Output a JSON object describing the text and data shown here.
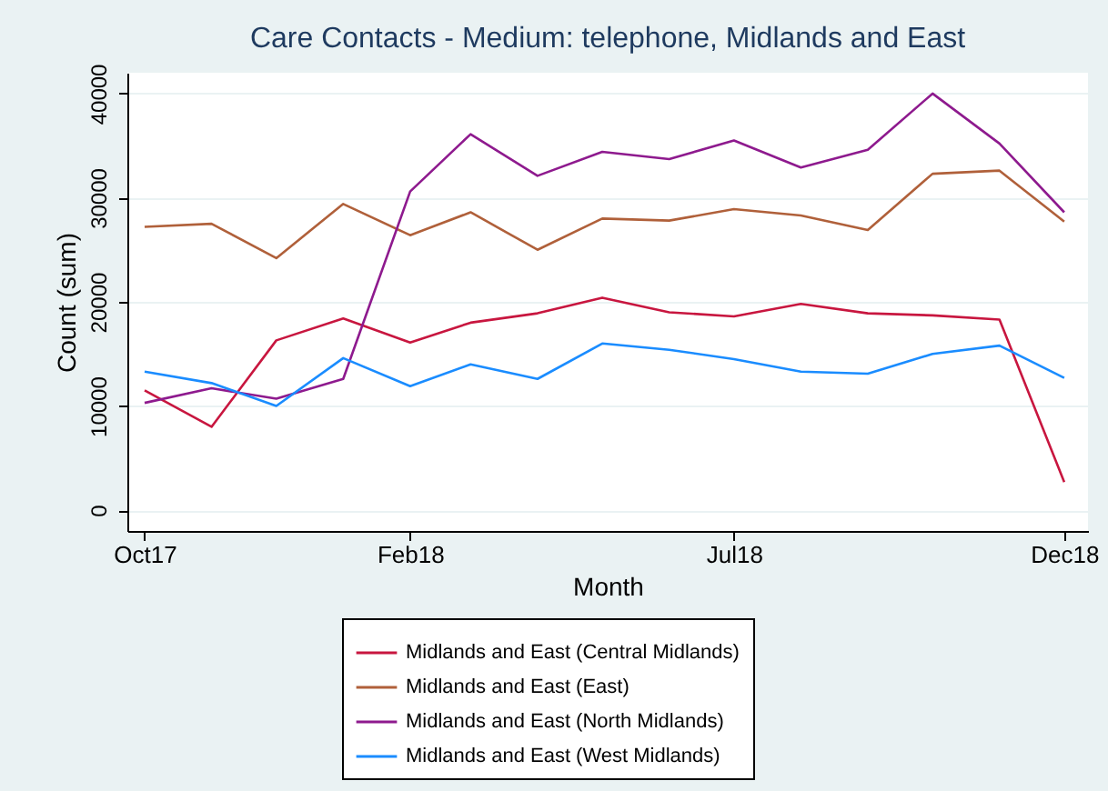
{
  "chart_data": {
    "type": "line",
    "title": "Care Contacts - Medium: telephone, Midlands and East",
    "xlabel": "Month",
    "ylabel": "Count (sum)",
    "x": [
      "2017-10",
      "2017-11",
      "2017-12",
      "2018-01",
      "2018-02",
      "2018-03",
      "2018-04",
      "2018-05",
      "2018-06",
      "2018-07",
      "2018-08",
      "2018-09",
      "2018-10",
      "2018-11",
      "2018-12"
    ],
    "series": [
      {
        "name": "Midlands and East (Central Midlands)",
        "color": "#c8163f",
        "values": [
          11500,
          8000,
          16300,
          18400,
          16100,
          18000,
          18900,
          20400,
          19000,
          18600,
          19800,
          18900,
          18700,
          18300,
          2700
        ]
      },
      {
        "name": "Midlands and East (East)",
        "color": "#b0603a",
        "values": [
          27200,
          27500,
          24200,
          29400,
          26400,
          28600,
          25000,
          28000,
          27800,
          28900,
          28300,
          26900,
          32300,
          32600,
          27700
        ]
      },
      {
        "name": "Midlands and East (North Midlands)",
        "color": "#8e1a8e",
        "values": [
          10300,
          11700,
          10700,
          12600,
          30600,
          36100,
          32100,
          34400,
          33700,
          35500,
          32900,
          34600,
          40000,
          35200,
          28600
        ]
      },
      {
        "name": "Midlands and East (West Midlands)",
        "color": "#1a8cff",
        "values": [
          13300,
          12200,
          10000,
          14600,
          11900,
          14000,
          12600,
          16000,
          15400,
          14500,
          13300,
          13100,
          15000,
          15800,
          12700
        ]
      }
    ],
    "xlim": [
      "2017-09-23",
      "2018-12-12"
    ],
    "xticks": [
      {
        "value": "2017-10",
        "label": "Oct17"
      },
      {
        "value": "2018-02",
        "label": "Feb18"
      },
      {
        "value": "2018-07",
        "label": "Jul18"
      },
      {
        "value": "2018-12",
        "label": "Dec18"
      }
    ],
    "ylim": [
      -2000,
      42000
    ],
    "yticks": [
      0,
      10000,
      20000,
      30000,
      40000
    ],
    "grid": "y",
    "legend": "bottom"
  }
}
